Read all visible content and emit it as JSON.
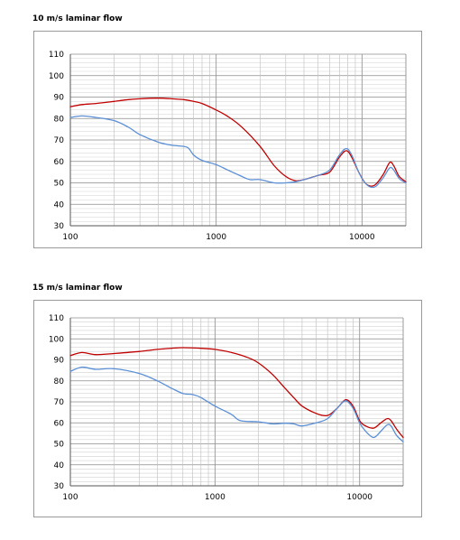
{
  "charts": [
    {
      "title": "10 m/s laminar flow",
      "chart_data": {
        "type": "line",
        "xscale": "log",
        "xlim": [
          100,
          20000
        ],
        "ylim": [
          30,
          110
        ],
        "yticks": [
          30,
          40,
          50,
          60,
          70,
          80,
          90,
          100,
          110
        ],
        "xticks": [
          100,
          1000,
          10000
        ],
        "xtick_labels": [
          "100",
          "1000",
          "10000"
        ],
        "grid": true,
        "series": [
          {
            "color": "#c00000",
            "points": [
              [
                100,
                85.5
              ],
              [
                120,
                86.5
              ],
              [
                150,
                87
              ],
              [
                200,
                88
              ],
              [
                250,
                88.8
              ],
              [
                300,
                89.2
              ],
              [
                400,
                89.5
              ],
              [
                500,
                89.2
              ],
              [
                600,
                88.8
              ],
              [
                700,
                88
              ],
              [
                800,
                87
              ],
              [
                1000,
                84
              ],
              [
                1200,
                81
              ],
              [
                1500,
                76
              ],
              [
                2000,
                67
              ],
              [
                2500,
                58
              ],
              [
                3000,
                53
              ],
              [
                3500,
                51
              ],
              [
                4000,
                51.5
              ],
              [
                5000,
                53.5
              ],
              [
                6000,
                55
              ],
              [
                7000,
                62
              ],
              [
                7800,
                65
              ],
              [
                8500,
                62
              ],
              [
                9500,
                55
              ],
              [
                10500,
                50
              ],
              [
                11500,
                48.5
              ],
              [
                12500,
                49.5
              ],
              [
                14000,
                54
              ],
              [
                15500,
                59.5
              ],
              [
                16500,
                58
              ],
              [
                18000,
                53
              ],
              [
                20000,
                50.5
              ]
            ]
          },
          {
            "color": "#5b8fd6",
            "points": [
              [
                100,
                80.5
              ],
              [
                120,
                81.2
              ],
              [
                150,
                80.5
              ],
              [
                200,
                79
              ],
              [
                250,
                76
              ],
              [
                300,
                72.5
              ],
              [
                400,
                69
              ],
              [
                500,
                67.5
              ],
              [
                600,
                67
              ],
              [
                650,
                66
              ],
              [
                700,
                63
              ],
              [
                800,
                60.5
              ],
              [
                1000,
                58.5
              ],
              [
                1200,
                56
              ],
              [
                1500,
                53
              ],
              [
                1700,
                51.5
              ],
              [
                2000,
                51.5
              ],
              [
                2500,
                50
              ],
              [
                3000,
                50
              ],
              [
                3500,
                50.5
              ],
              [
                4000,
                51.5
              ],
              [
                5000,
                53.5
              ],
              [
                6000,
                56
              ],
              [
                7000,
                63
              ],
              [
                7800,
                66
              ],
              [
                8500,
                63
              ],
              [
                9500,
                55
              ],
              [
                10500,
                50
              ],
              [
                11500,
                48
              ],
              [
                12500,
                48.5
              ],
              [
                14000,
                52.5
              ],
              [
                15500,
                57
              ],
              [
                16500,
                56
              ],
              [
                18000,
                52
              ],
              [
                20000,
                50
              ]
            ]
          }
        ]
      }
    },
    {
      "title": "15 m/s laminar flow",
      "chart_data": {
        "type": "line",
        "xscale": "log",
        "xlim": [
          100,
          20000
        ],
        "ylim": [
          30,
          110
        ],
        "yticks": [
          30,
          40,
          50,
          60,
          70,
          80,
          90,
          100,
          110
        ],
        "xticks": [
          100,
          1000,
          10000
        ],
        "xtick_labels": [
          "100",
          "1000",
          "10000"
        ],
        "grid": true,
        "series": [
          {
            "color": "#c00000",
            "points": [
              [
                100,
                92
              ],
              [
                120,
                93.5
              ],
              [
                150,
                92.5
              ],
              [
                200,
                93
              ],
              [
                300,
                94
              ],
              [
                400,
                95
              ],
              [
                500,
                95.5
              ],
              [
                600,
                95.8
              ],
              [
                800,
                95.5
              ],
              [
                1000,
                95
              ],
              [
                1300,
                93.5
              ],
              [
                1700,
                91
              ],
              [
                2000,
                88.5
              ],
              [
                2500,
                83
              ],
              [
                3000,
                77
              ],
              [
                3500,
                72
              ],
              [
                4000,
                68
              ],
              [
                5000,
                64.5
              ],
              [
                6000,
                63.5
              ],
              [
                7000,
                67
              ],
              [
                8000,
                71
              ],
              [
                9000,
                68
              ],
              [
                10000,
                61
              ],
              [
                11000,
                58.5
              ],
              [
                12500,
                57.5
              ],
              [
                14000,
                60
              ],
              [
                15500,
                62
              ],
              [
                16500,
                61
              ],
              [
                18000,
                57
              ],
              [
                20000,
                53
              ]
            ]
          },
          {
            "color": "#5b8fd6",
            "points": [
              [
                100,
                84.5
              ],
              [
                120,
                86.5
              ],
              [
                150,
                85.5
              ],
              [
                200,
                85.8
              ],
              [
                300,
                83.5
              ],
              [
                400,
                80
              ],
              [
                500,
                76.5
              ],
              [
                600,
                74
              ],
              [
                700,
                73.5
              ],
              [
                800,
                72
              ],
              [
                1000,
                68
              ],
              [
                1300,
                64
              ],
              [
                1500,
                61
              ],
              [
                2000,
                60.5
              ],
              [
                2500,
                59.5
              ],
              [
                3000,
                59.8
              ],
              [
                3500,
                59.5
              ],
              [
                4000,
                58.5
              ],
              [
                5000,
                60
              ],
              [
                6000,
                62
              ],
              [
                7000,
                67
              ],
              [
                8000,
                70.5
              ],
              [
                9000,
                67
              ],
              [
                10000,
                60
              ],
              [
                11000,
                56
              ],
              [
                12500,
                53
              ],
              [
                14000,
                56
              ],
              [
                15500,
                59
              ],
              [
                16500,
                58.5
              ],
              [
                18000,
                54
              ],
              [
                20000,
                51
              ]
            ]
          }
        ]
      }
    }
  ]
}
